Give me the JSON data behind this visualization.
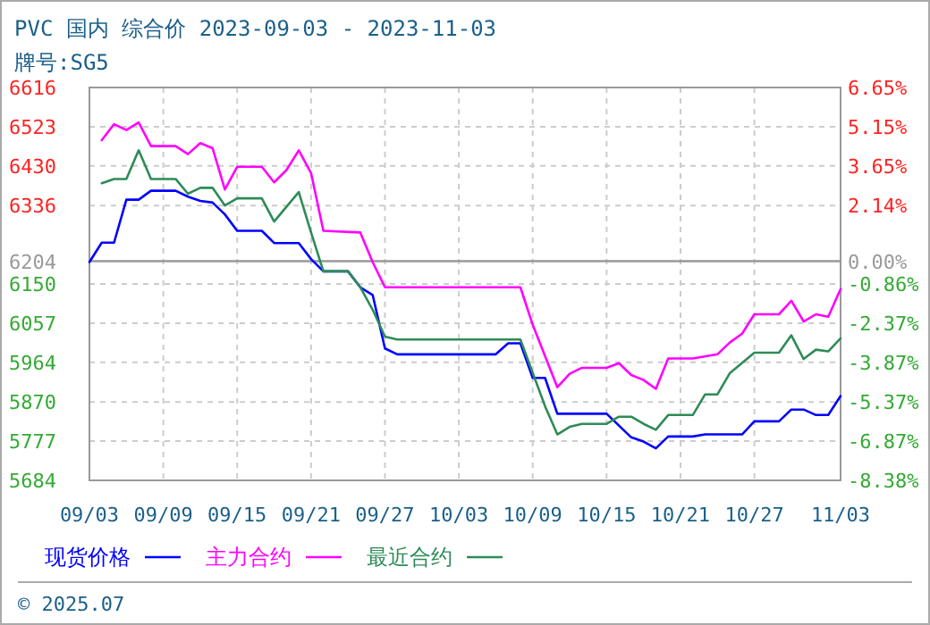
{
  "chart_data": {
    "type": "line",
    "title": "PVC 国内 综合价 2023-09-03 - 2023-11-03",
    "subtitle": "牌号:SG5",
    "xlim": [
      "2023-09-03",
      "2023-11-03"
    ],
    "xticks": [
      {
        "value": "2023-09-03",
        "label": "09/03"
      },
      {
        "value": "2023-09-09",
        "label": "09/09"
      },
      {
        "value": "2023-09-15",
        "label": "09/15"
      },
      {
        "value": "2023-09-21",
        "label": "09/21"
      },
      {
        "value": "2023-09-27",
        "label": "09/27"
      },
      {
        "value": "2023-10-03",
        "label": "10/03"
      },
      {
        "value": "2023-10-09",
        "label": "10/09"
      },
      {
        "value": "2023-10-15",
        "label": "10/15"
      },
      {
        "value": "2023-10-21",
        "label": "10/21"
      },
      {
        "value": "2023-10-27",
        "label": "10/27"
      },
      {
        "value": "2023-11-03",
        "label": "11/03"
      }
    ],
    "ylim": [
      5684,
      6616
    ],
    "yticks": [
      5684,
      5777,
      5870,
      5964,
      6057,
      6150,
      6204,
      6336,
      6430,
      6523,
      6616
    ],
    "y2lim": [
      -8.38,
      6.65
    ],
    "y2ticks": [
      {
        "value": -8.38,
        "label": "-8.38%"
      },
      {
        "value": -6.87,
        "label": "-6.87%"
      },
      {
        "value": -5.37,
        "label": "-5.37%"
      },
      {
        "value": -3.87,
        "label": "-3.87%"
      },
      {
        "value": -2.37,
        "label": "-2.37%"
      },
      {
        "value": -0.86,
        "label": "-0.86%"
      },
      {
        "value": 0,
        "label": "0.00%"
      },
      {
        "value": 2.14,
        "label": "2.14%"
      },
      {
        "value": 3.65,
        "label": "3.65%"
      },
      {
        "value": 5.15,
        "label": "5.15%"
      },
      {
        "value": 6.65,
        "label": "6.65%"
      }
    ],
    "grid": true,
    "legend": "bottom",
    "line_style": "solid",
    "ref_lines": [
      {
        "axis": "y",
        "value": 6204,
        "color": "#999999"
      }
    ],
    "annotations": [
      "© 2025.07"
    ],
    "series": [
      {
        "name": "现货价格",
        "color": "#0000ff",
        "x": [
          "2023-09-03",
          "2023-09-04",
          "2023-09-05",
          "2023-09-06",
          "2023-09-07",
          "2023-09-08",
          "2023-09-10",
          "2023-09-11",
          "2023-09-12",
          "2023-09-13",
          "2023-09-14",
          "2023-09-15",
          "2023-09-17",
          "2023-09-18",
          "2023-09-20",
          "2023-09-21",
          "2023-09-22",
          "2023-09-24",
          "2023-09-25",
          "2023-09-26",
          "2023-09-27",
          "2023-09-28",
          "2023-10-06",
          "2023-10-07",
          "2023-10-08",
          "2023-10-09",
          "2023-10-10",
          "2023-10-11",
          "2023-10-15",
          "2023-10-17",
          "2023-10-18",
          "2023-10-19",
          "2023-10-20",
          "2023-10-22",
          "2023-10-23",
          "2023-10-26",
          "2023-10-27",
          "2023-10-29",
          "2023-10-30",
          "2023-10-31",
          "2023-11-01",
          "2023-11-02",
          "2023-11-03"
        ],
        "values": [
          6202,
          6248,
          6248,
          6350,
          6350,
          6371,
          6371,
          6357,
          6347,
          6343,
          6315,
          6276,
          6276,
          6247,
          6247,
          6209,
          6180,
          6180,
          6142,
          6124,
          5997,
          5983,
          5983,
          6009,
          6009,
          5927,
          5927,
          5842,
          5842,
          5786,
          5776,
          5760,
          5788,
          5788,
          5793,
          5793,
          5824,
          5824,
          5852,
          5852,
          5839,
          5839,
          5884
        ]
      },
      {
        "name": "主力合约",
        "color": "#ff00ff",
        "x": [
          "2023-09-04",
          "2023-09-05",
          "2023-09-06",
          "2023-09-07",
          "2023-09-08",
          "2023-09-10",
          "2023-09-11",
          "2023-09-12",
          "2023-09-13",
          "2023-09-14",
          "2023-09-15",
          "2023-09-17",
          "2023-09-18",
          "2023-09-19",
          "2023-09-20",
          "2023-09-21",
          "2023-09-22",
          "2023-09-25",
          "2023-09-26",
          "2023-09-27",
          "2023-10-08",
          "2023-10-09",
          "2023-10-11",
          "2023-10-12",
          "2023-10-13",
          "2023-10-15",
          "2023-10-16",
          "2023-10-17",
          "2023-10-18",
          "2023-10-19",
          "2023-10-20",
          "2023-10-22",
          "2023-10-24",
          "2023-10-25",
          "2023-10-26",
          "2023-10-27",
          "2023-10-29",
          "2023-10-30",
          "2023-10-31",
          "2023-11-01",
          "2023-11-02",
          "2023-11-03"
        ],
        "values": [
          6491,
          6529,
          6515,
          6533,
          6477,
          6477,
          6458,
          6484,
          6472,
          6374,
          6428,
          6428,
          6391,
          6420,
          6467,
          6413,
          6276,
          6272,
          6202,
          6142,
          6142,
          6053,
          5905,
          5937,
          5951,
          5951,
          5962,
          5934,
          5922,
          5901,
          5973,
          5973,
          5983,
          6011,
          6032,
          6078,
          6078,
          6110,
          6061,
          6078,
          6072,
          6138
        ]
      },
      {
        "name": "最近合约",
        "color": "#2e8b57",
        "x": [
          "2023-09-04",
          "2023-09-05",
          "2023-09-06",
          "2023-09-07",
          "2023-09-08",
          "2023-09-10",
          "2023-09-11",
          "2023-09-12",
          "2023-09-13",
          "2023-09-14",
          "2023-09-15",
          "2023-09-17",
          "2023-09-18",
          "2023-09-19",
          "2023-09-20",
          "2023-09-21",
          "2023-09-22",
          "2023-09-24",
          "2023-09-25",
          "2023-09-26",
          "2023-09-27",
          "2023-09-28",
          "2023-10-08",
          "2023-10-10",
          "2023-10-11",
          "2023-10-12",
          "2023-10-13",
          "2023-10-15",
          "2023-10-16",
          "2023-10-17",
          "2023-10-18",
          "2023-10-19",
          "2023-10-20",
          "2023-10-22",
          "2023-10-23",
          "2023-10-24",
          "2023-10-25",
          "2023-10-27",
          "2023-10-29",
          "2023-10-30",
          "2023-10-31",
          "2023-11-01",
          "2023-11-02",
          "2023-11-03"
        ],
        "values": [
          6389,
          6399,
          6399,
          6467,
          6399,
          6399,
          6364,
          6378,
          6378,
          6336,
          6353,
          6353,
          6298,
          6333,
          6368,
          6272,
          6180,
          6180,
          6142,
          6089,
          6025,
          6018,
          6018,
          5860,
          5793,
          5811,
          5818,
          5818,
          5835,
          5835,
          5818,
          5804,
          5839,
          5839,
          5888,
          5888,
          5938,
          5987,
          5987,
          6028,
          5972,
          5994,
          5990,
          6021
        ]
      }
    ]
  }
}
